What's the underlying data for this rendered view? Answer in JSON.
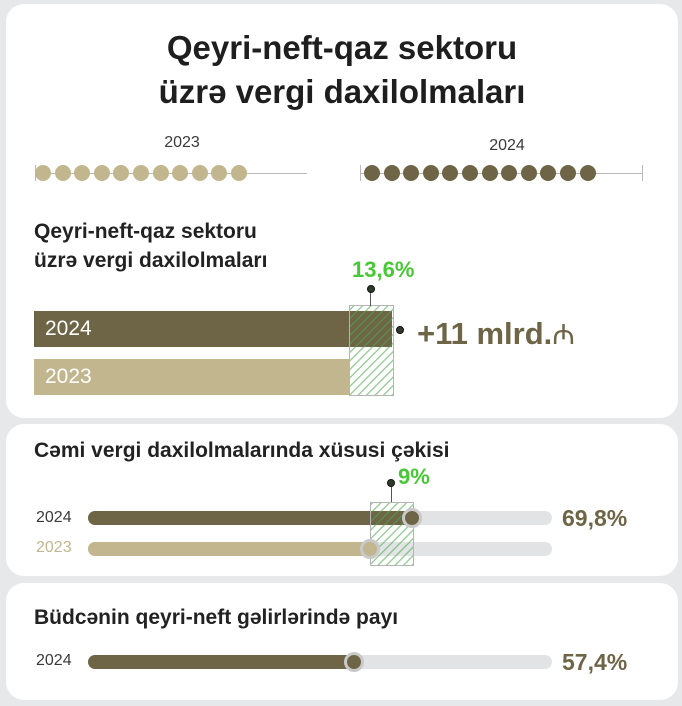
{
  "title_line1": "Qeyri-neft-qaz sektoru",
  "title_line2": "üzrə vergi daxilolmaları",
  "colors": {
    "dark": "#6e6547",
    "light": "#c2b68e",
    "green": "#47c935",
    "track": "#e1e3e5"
  },
  "chart_data": [
    {
      "type": "bar",
      "title_line1": "Qeyri-neft-qaz sektoru",
      "title_line2": "üzrə vergi daxilolmaları",
      "categories": [
        "2024",
        "2023"
      ],
      "values": [
        1.136,
        1.0
      ],
      "growth_label": "13,6%",
      "increase_label": "+11 mlrd.",
      "currency_symbol": "₼"
    },
    {
      "type": "bar",
      "title": "Cəmi vergi daxilolmalarında xüsusi çəkisi",
      "categories": [
        "2024",
        "2023"
      ],
      "values": [
        69.8,
        60.8
      ],
      "value_labels": [
        "69,8%",
        ""
      ],
      "growth_label": "9%"
    },
    {
      "type": "bar",
      "title": "Büdcənin qeyri-neft gəlirlərində payı",
      "categories": [
        "2024"
      ],
      "values": [
        57.4
      ],
      "value_labels": [
        "57,4%"
      ]
    }
  ],
  "timeline": [
    {
      "year": "2023",
      "dots": 11
    },
    {
      "year": "2024",
      "dots": 12
    }
  ]
}
